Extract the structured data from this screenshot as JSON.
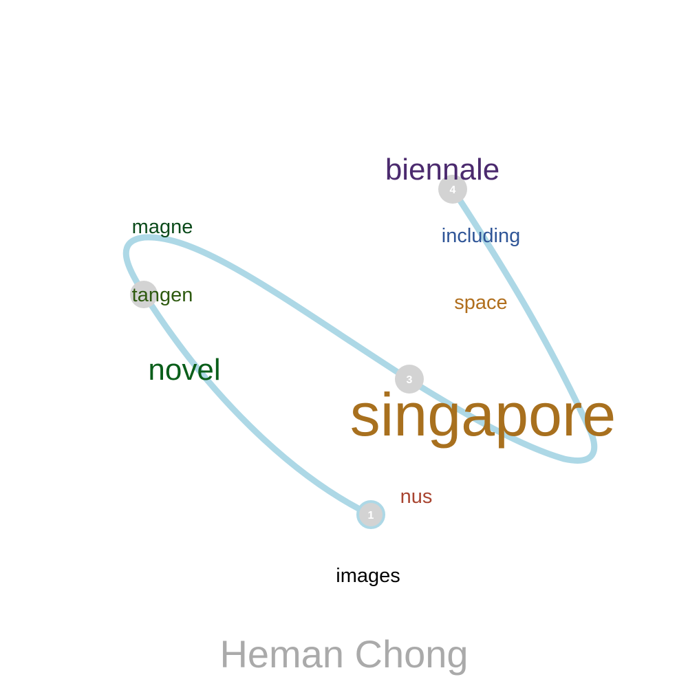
{
  "title": "Heman Chong",
  "colors": {
    "path": "#add8e6",
    "node": "#d3d3d3",
    "node_label": "#ffffff",
    "title": "#aaaaaa"
  },
  "nodes": [
    {
      "label": "1",
      "outlined": true
    },
    {
      "label": "3",
      "outlined": false
    },
    {
      "label": "4",
      "outlined": false
    }
  ],
  "words": [
    {
      "text": "biennale",
      "color": "#4b2a6e"
    },
    {
      "text": "magne",
      "color": "#0b4a1a"
    },
    {
      "text": "including",
      "color": "#2f5597"
    },
    {
      "text": "tangen",
      "color": "#2e5a10"
    },
    {
      "text": "space",
      "color": "#b06e1c"
    },
    {
      "text": "novel",
      "color": "#0a5e1a"
    },
    {
      "text": "singapore",
      "color": "#a8701e"
    },
    {
      "text": "nus",
      "color": "#a84430"
    },
    {
      "text": "images",
      "color": "#000000"
    }
  ]
}
